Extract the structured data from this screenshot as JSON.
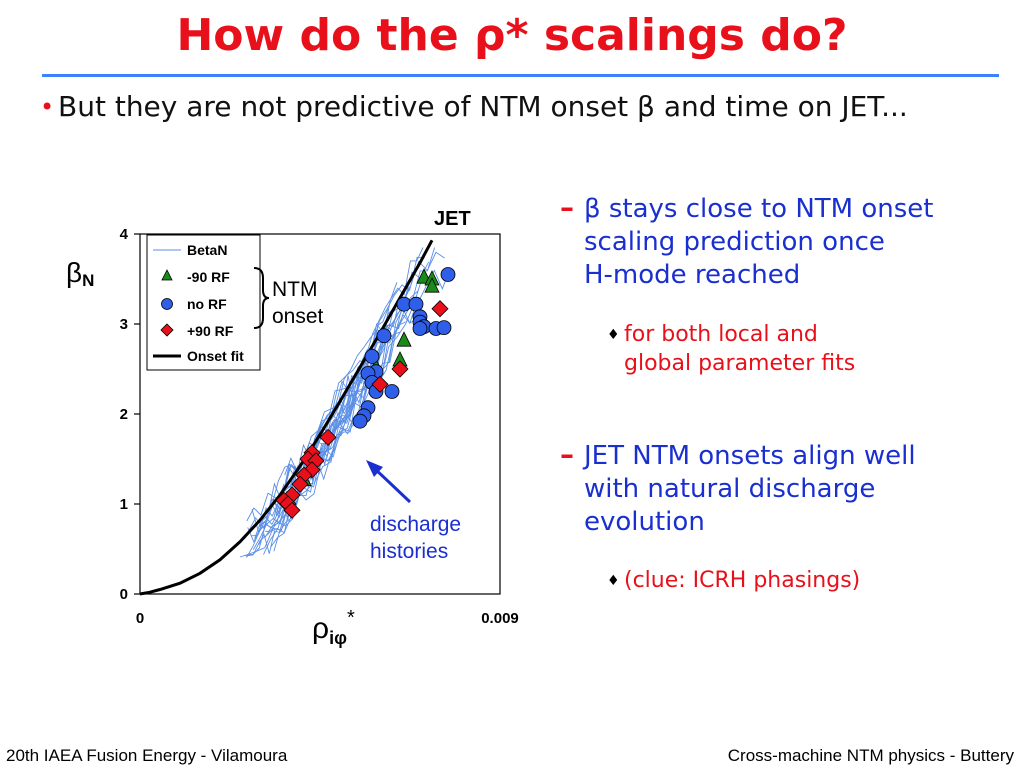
{
  "slide": {
    "title": "How do the ρ* scalings do?",
    "bullet": "But they are not predictive of NTM onset β and time on JET...",
    "sub1": {
      "marker": "–",
      "lines": [
        "β stays close to NTM onset",
        "scaling prediction once",
        "H-mode reached"
      ]
    },
    "subsub1": {
      "marker": "♦",
      "lines": [
        "for both local and",
        "global parameter fits"
      ]
    },
    "sub2": {
      "marker": "–",
      "lines": [
        "JET NTM onsets align well",
        "with natural discharge",
        "evolution"
      ]
    },
    "subsub2": {
      "marker": "♦",
      "lines": [
        "(clue: ICRH phasings)"
      ]
    },
    "footer_left": "20th IAEA Fusion Energy - Vilamoura",
    "footer_right": "Cross-machine NTM physics - Buttery"
  },
  "colors": {
    "title": "#e8101a",
    "rule": "#3a82ff",
    "sub_text": "#1a2fd0",
    "subsub_text": "#e8101a",
    "betaN_line": "#5b8fe6",
    "minus90": "#1a8a1a",
    "noRF": "#2f5fe8",
    "plus90": "#e8101a",
    "fit": "#000000"
  },
  "chart_data": {
    "type": "scatter",
    "title": "JET",
    "ylabel_main": "β",
    "ylabel_sub": "N",
    "xlabel_main": "ρ",
    "xlabel_sub": "iφ",
    "xlabel_sup": "*",
    "xlim": [
      0,
      0.009
    ],
    "ylim": [
      0,
      4
    ],
    "x_tick_labels": [
      "0",
      "0.009"
    ],
    "y_tick_labels": [
      "0",
      "1",
      "2",
      "3",
      "4"
    ],
    "grid": false,
    "legend_position": "top-left",
    "legend": [
      "BetaN",
      "-90 RF",
      "no RF",
      "+90 RF",
      "Onset fit"
    ],
    "brace_label": [
      "NTM",
      "onset"
    ],
    "annotation": [
      "discharge",
      "histories"
    ],
    "onset_fit": [
      [
        0.0,
        0.0
      ],
      [
        0.00025,
        0.02
      ],
      [
        0.0005,
        0.05
      ],
      [
        0.001,
        0.12
      ],
      [
        0.0015,
        0.23
      ],
      [
        0.002,
        0.38
      ],
      [
        0.0025,
        0.58
      ],
      [
        0.003,
        0.82
      ],
      [
        0.0035,
        1.1
      ],
      [
        0.004,
        1.42
      ],
      [
        0.0045,
        1.77
      ],
      [
        0.005,
        2.14
      ],
      [
        0.0055,
        2.52
      ],
      [
        0.006,
        2.9
      ],
      [
        0.0065,
        3.29
      ],
      [
        0.007,
        3.68
      ],
      [
        0.0073,
        3.93
      ]
    ],
    "series": [
      {
        "name": "-90 RF",
        "marker": "triangle",
        "points": [
          [
            0.0071,
            3.52
          ],
          [
            0.0073,
            3.5
          ],
          [
            0.0073,
            3.42
          ],
          [
            0.0066,
            2.82
          ],
          [
            0.0059,
            2.52
          ],
          [
            0.0065,
            2.6
          ],
          [
            0.0041,
            1.27
          ]
        ]
      },
      {
        "name": "no RF",
        "marker": "circle",
        "points": [
          [
            0.0077,
            3.55
          ],
          [
            0.0066,
            3.22
          ],
          [
            0.0069,
            3.22
          ],
          [
            0.007,
            3.08
          ],
          [
            0.007,
            3.02
          ],
          [
            0.0071,
            2.97
          ],
          [
            0.007,
            2.95
          ],
          [
            0.0074,
            2.95
          ],
          [
            0.0076,
            2.96
          ],
          [
            0.0061,
            2.87
          ],
          [
            0.0058,
            2.64
          ],
          [
            0.0059,
            2.47
          ],
          [
            0.0057,
            2.45
          ],
          [
            0.0058,
            2.35
          ],
          [
            0.0059,
            2.25
          ],
          [
            0.0063,
            2.25
          ],
          [
            0.0057,
            2.07
          ],
          [
            0.0056,
            1.98
          ],
          [
            0.0055,
            1.92
          ]
        ]
      },
      {
        "name": "+90 RF",
        "marker": "diamond",
        "points": [
          [
            0.0075,
            3.17
          ],
          [
            0.0065,
            2.5
          ],
          [
            0.006,
            2.33
          ],
          [
            0.0047,
            1.74
          ],
          [
            0.0043,
            1.57
          ],
          [
            0.0042,
            1.5
          ],
          [
            0.0044,
            1.48
          ],
          [
            0.0043,
            1.38
          ],
          [
            0.0041,
            1.32
          ],
          [
            0.004,
            1.22
          ],
          [
            0.0038,
            1.1
          ],
          [
            0.0036,
            1.04
          ],
          [
            0.0037,
            1.0
          ],
          [
            0.0038,
            0.93
          ]
        ]
      }
    ]
  }
}
